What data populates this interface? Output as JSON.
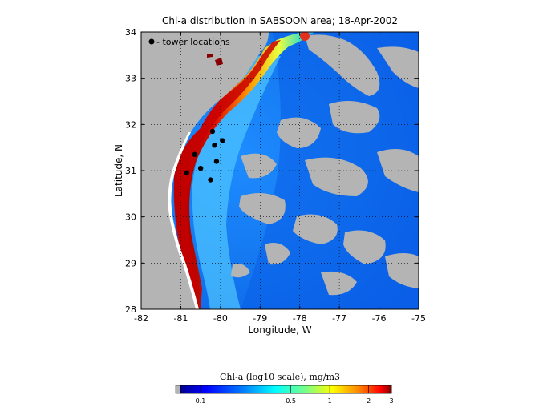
{
  "title": "Chl-a distribution in SABSOON area; 18-Apr-2002",
  "xlabel": "Longitude, W",
  "ylabel": "Latitude, N",
  "x_ticks": [
    "-82",
    "-81",
    "-80",
    "-79",
    "-78",
    "-77",
    "-76",
    "-75"
  ],
  "y_ticks": [
    "34",
    "33",
    "32",
    "31",
    "30",
    "29",
    "28"
  ],
  "legend_label": "- tower locations",
  "colorbar": {
    "title": "Chl-a (log10 scale), mg/m3",
    "ticks": [
      "0.1",
      "0.5",
      "1",
      "2",
      "3"
    ]
  },
  "colors": {
    "land": "#b4b4b4",
    "legend_text": "#0000cc",
    "marker": "#000000"
  },
  "chart_data": {
    "type": "scatter",
    "title": "Chl-a distribution in SABSOON area; 18-Apr-2002",
    "xlabel": "Longitude, W",
    "ylabel": "Latitude, N",
    "xlim": [
      -82,
      -75
    ],
    "ylim": [
      28,
      34
    ],
    "grid": true,
    "legend": "top-left",
    "series": [
      {
        "name": "tower locations",
        "points": [
          [
            -80.2,
            31.85
          ],
          [
            -79.95,
            31.65
          ],
          [
            -80.15,
            31.55
          ],
          [
            -80.65,
            31.35
          ],
          [
            -80.1,
            31.2
          ],
          [
            -80.5,
            31.05
          ],
          [
            -80.85,
            30.95
          ],
          [
            -80.25,
            30.8
          ]
        ]
      }
    ]
  }
}
